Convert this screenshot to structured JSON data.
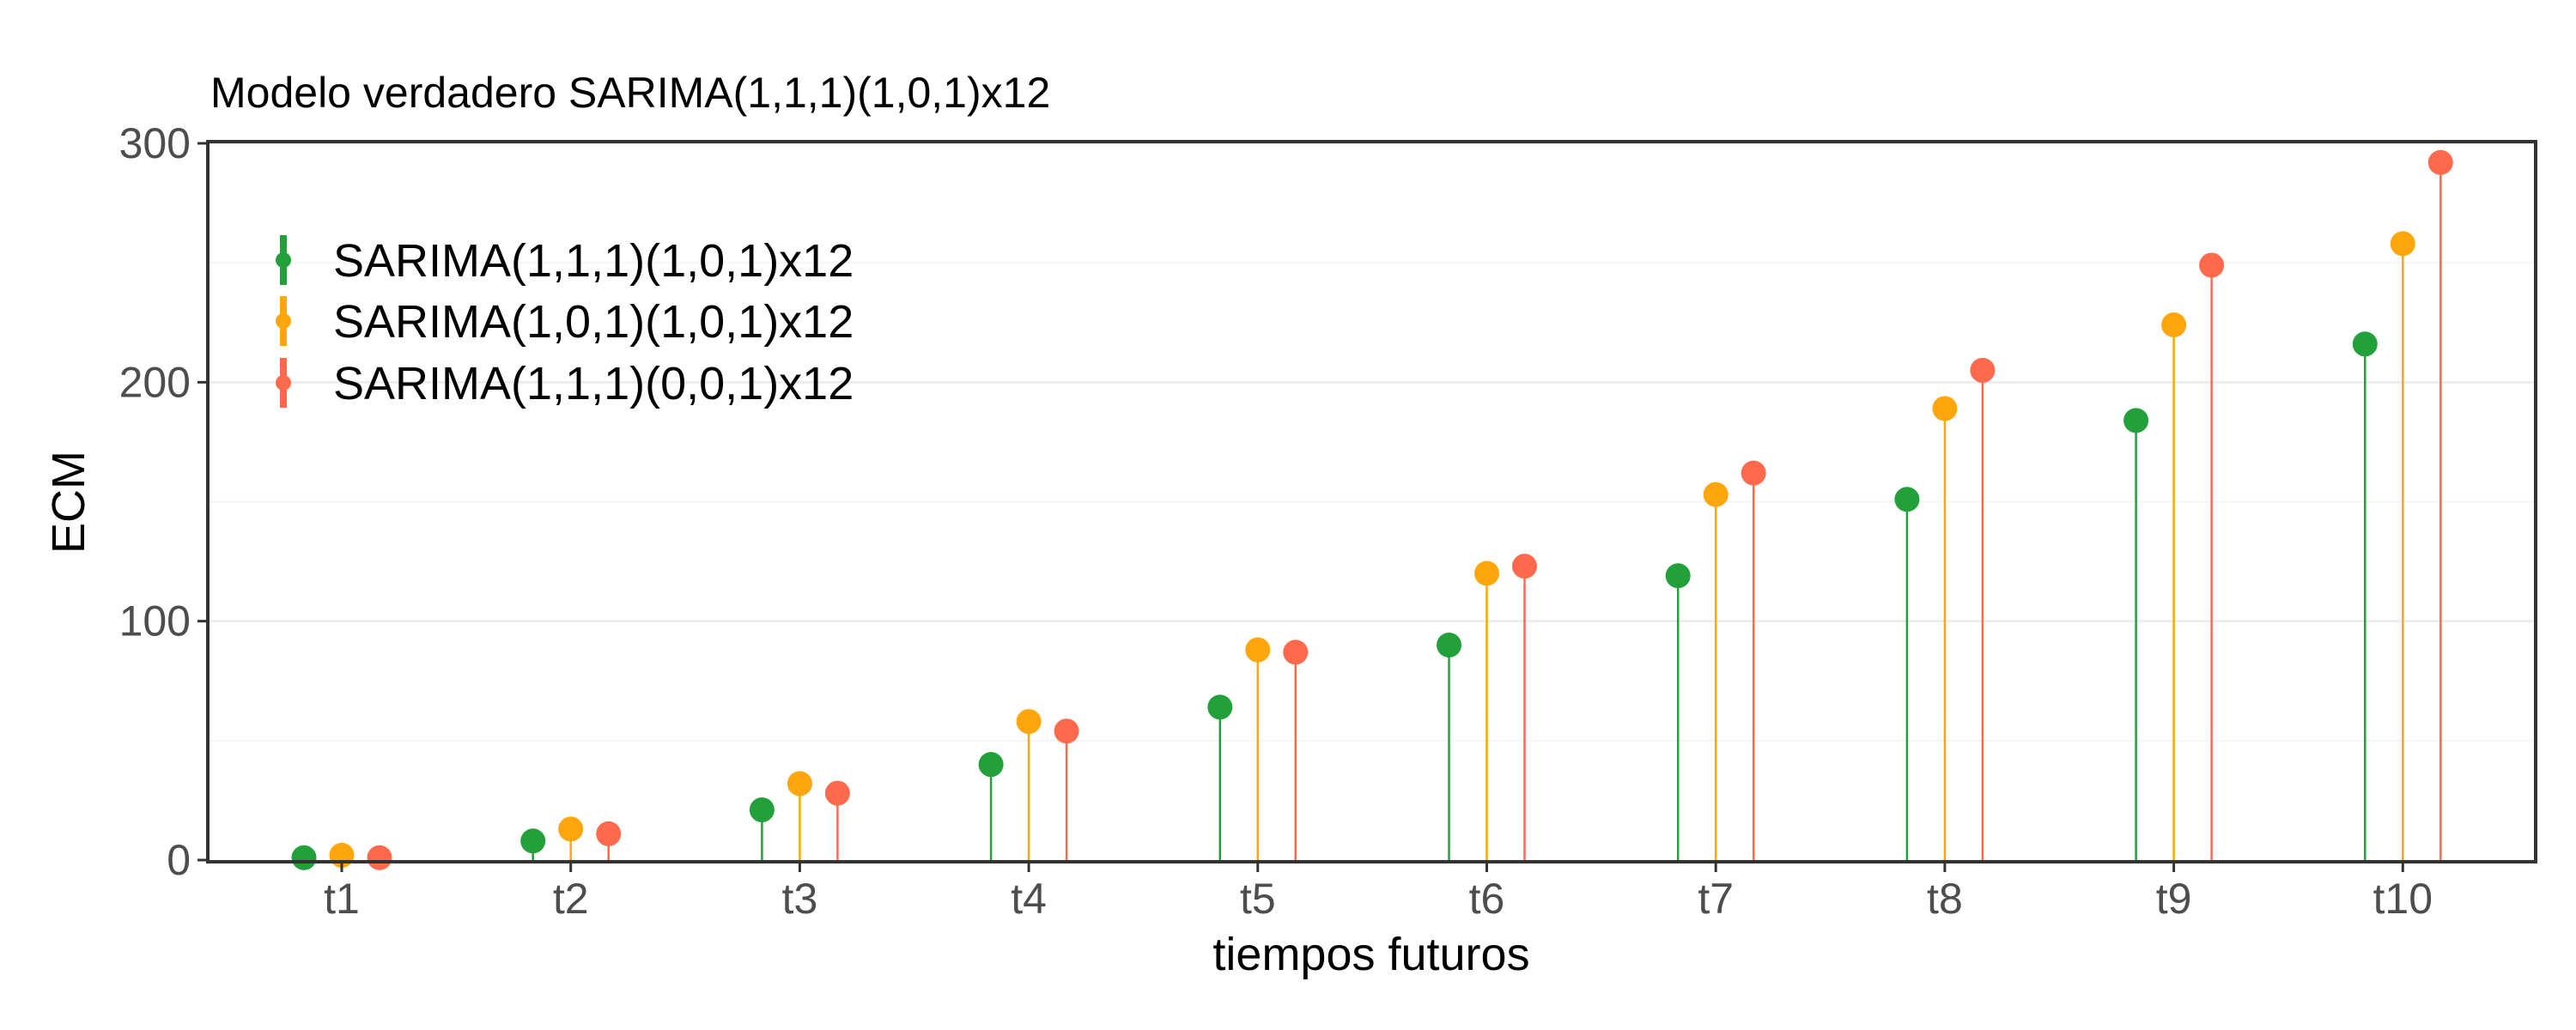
{
  "chart_data": {
    "type": "scatter",
    "style": "lollipop",
    "title": "Modelo verdadero SARIMA(1,1,1)(1,0,1)x12",
    "xlabel": "tiempos futuros",
    "ylabel": "ECM",
    "categories": [
      "t1",
      "t2",
      "t3",
      "t4",
      "t5",
      "t6",
      "t7",
      "t8",
      "t9",
      "t10"
    ],
    "ylim": [
      0,
      300
    ],
    "yticks": [
      "0",
      "100",
      "200",
      "300"
    ],
    "grid": true,
    "legend_position": "top-left",
    "series": [
      {
        "name": "SARIMA(1,1,1)(1,0,1)x12",
        "color": "#22a03a",
        "values": [
          1,
          8,
          21,
          40,
          64,
          90,
          119,
          151,
          184,
          216
        ]
      },
      {
        "name": "SARIMA(1,0,1)(1,0,1)x12",
        "color": "#ffa60f",
        "values": [
          2,
          13,
          32,
          58,
          88,
          120,
          153,
          189,
          224,
          258
        ]
      },
      {
        "name": "SARIMA(1,1,1)(0,0,1)x12",
        "color": "#ff6a4d",
        "values": [
          1,
          11,
          28,
          54,
          87,
          123,
          162,
          205,
          249,
          292
        ]
      }
    ]
  }
}
